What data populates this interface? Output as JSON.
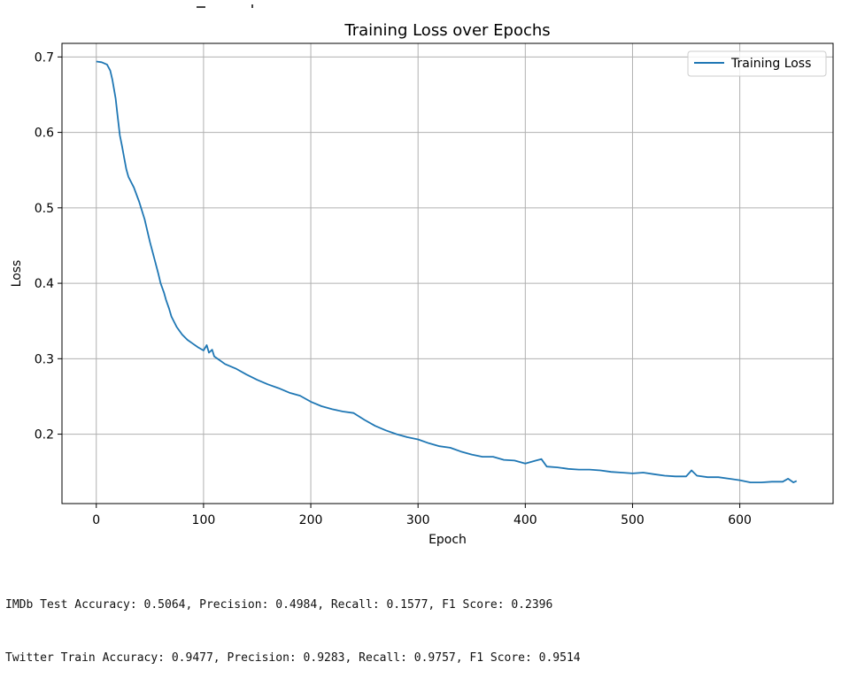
{
  "chart_data": {
    "type": "line",
    "title": "Training Loss over Epochs",
    "xlabel": "Epoch",
    "ylabel": "Loss",
    "xlim": [
      -32,
      687
    ],
    "ylim": [
      0.108,
      0.718
    ],
    "xticks": [
      0,
      100,
      200,
      300,
      400,
      500,
      600
    ],
    "yticks": [
      0.2,
      0.3,
      0.4,
      0.5,
      0.6,
      0.7
    ],
    "grid": true,
    "legend_position": "top-right",
    "series": [
      {
        "name": "Training Loss",
        "color": "#1f77b4",
        "x": [
          0,
          5,
          10,
          13,
          15,
          18,
          20,
          22,
          24,
          26,
          28,
          30,
          35,
          40,
          45,
          50,
          55,
          58,
          60,
          63,
          65,
          68,
          70,
          75,
          80,
          85,
          90,
          95,
          100,
          103,
          105,
          108,
          110,
          115,
          120,
          130,
          140,
          150,
          160,
          170,
          180,
          190,
          200,
          210,
          220,
          230,
          240,
          250,
          260,
          270,
          280,
          290,
          300,
          310,
          320,
          330,
          340,
          350,
          360,
          370,
          380,
          390,
          400,
          410,
          415,
          420,
          430,
          440,
          450,
          460,
          470,
          480,
          490,
          500,
          510,
          520,
          530,
          540,
          550,
          555,
          560,
          570,
          580,
          590,
          600,
          610,
          620,
          630,
          640,
          645,
          650,
          653
        ],
        "y": [
          0.694,
          0.693,
          0.69,
          0.682,
          0.67,
          0.645,
          0.62,
          0.596,
          0.582,
          0.566,
          0.551,
          0.541,
          0.527,
          0.508,
          0.485,
          0.455,
          0.428,
          0.412,
          0.4,
          0.388,
          0.378,
          0.366,
          0.356,
          0.342,
          0.332,
          0.325,
          0.32,
          0.315,
          0.311,
          0.318,
          0.308,
          0.312,
          0.303,
          0.298,
          0.293,
          0.287,
          0.279,
          0.272,
          0.266,
          0.261,
          0.255,
          0.251,
          0.243,
          0.237,
          0.233,
          0.23,
          0.228,
          0.219,
          0.211,
          0.205,
          0.2,
          0.196,
          0.193,
          0.188,
          0.184,
          0.182,
          0.177,
          0.173,
          0.17,
          0.17,
          0.166,
          0.165,
          0.161,
          0.165,
          0.167,
          0.157,
          0.156,
          0.154,
          0.153,
          0.153,
          0.152,
          0.15,
          0.149,
          0.148,
          0.149,
          0.147,
          0.145,
          0.144,
          0.144,
          0.152,
          0.145,
          0.143,
          0.143,
          0.141,
          0.139,
          0.136,
          0.136,
          0.137,
          0.137,
          0.141,
          0.136,
          0.138
        ]
      }
    ]
  },
  "output": {
    "lines": [
      "IMDb Test Accuracy: 0.5064, Precision: 0.4984, Recall: 0.1577, F1 Score: 0.2396",
      "Twitter Train Accuracy: 0.9477, Precision: 0.9283, Recall: 0.9757, F1 Score: 0.9514"
    ]
  }
}
